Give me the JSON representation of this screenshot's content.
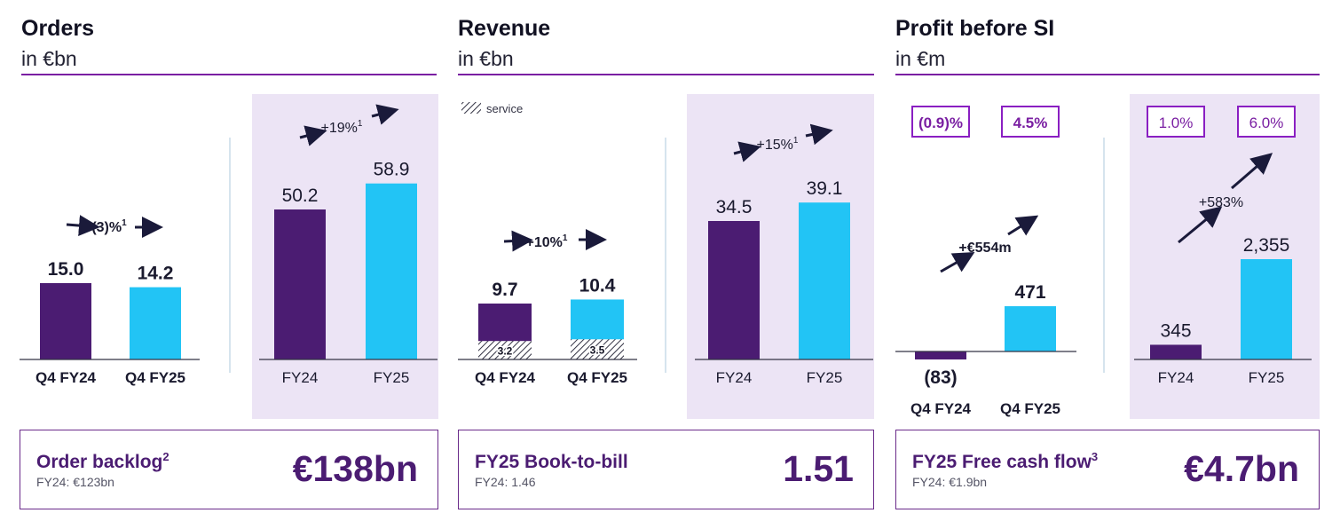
{
  "colors": {
    "purple": "#4b1c72",
    "cyan": "#22c4f5",
    "panel": "#ece4f5",
    "accent": "#7a1fa2",
    "arrow": "#1a1a3a"
  },
  "sections": {
    "orders": {
      "title": "Orders",
      "unit": "in €bn"
    },
    "revenue": {
      "title": "Revenue",
      "unit": "in €bn",
      "legend": "service"
    },
    "profit": {
      "title": "Profit before SI",
      "unit": "in €m"
    }
  },
  "chart_data": [
    {
      "id": "orders-quarter",
      "type": "bar",
      "categories": [
        "Q4 FY24",
        "Q4 FY25"
      ],
      "values": [
        15.0,
        14.2
      ],
      "labels": [
        "15.0",
        "14.2"
      ],
      "change_label": "(3)%",
      "change_sup": "1",
      "ylim": [
        0,
        70
      ]
    },
    {
      "id": "orders-year",
      "type": "bar",
      "categories": [
        "FY24",
        "FY25"
      ],
      "values": [
        50.2,
        58.9
      ],
      "labels": [
        "50.2",
        "58.9"
      ],
      "change_label": "+19%",
      "change_sup": "1",
      "ylim": [
        0,
        70
      ]
    },
    {
      "id": "revenue-quarter",
      "type": "bar",
      "categories": [
        "Q4 FY24",
        "Q4 FY25"
      ],
      "values": [
        9.7,
        10.4
      ],
      "labels": [
        "9.7",
        "10.4"
      ],
      "service_values": [
        3.2,
        3.5
      ],
      "service_labels": [
        "3.2",
        "3.5"
      ],
      "change_label": "+10%",
      "change_sup": "1",
      "ylim": [
        0,
        46
      ]
    },
    {
      "id": "revenue-year",
      "type": "bar",
      "categories": [
        "FY24",
        "FY25"
      ],
      "values": [
        34.5,
        39.1
      ],
      "labels": [
        "34.5",
        "39.1"
      ],
      "change_label": "+15%",
      "change_sup": "1",
      "ylim": [
        0,
        46
      ]
    },
    {
      "id": "profit-quarter",
      "type": "bar",
      "categories": [
        "Q4 FY24",
        "Q4 FY25"
      ],
      "values": [
        -83,
        471
      ],
      "labels": [
        "(83)",
        "471"
      ],
      "margins": [
        "(0.9)%",
        "4.5%"
      ],
      "change_label": "+€554m",
      "ylim": [
        -100,
        1100
      ]
    },
    {
      "id": "profit-year",
      "type": "bar",
      "categories": [
        "FY24",
        "FY25"
      ],
      "values": [
        345,
        2355
      ],
      "labels": [
        "345",
        "2,355"
      ],
      "margins": [
        "1.0%",
        "6.0%"
      ],
      "change_label": "+583%",
      "ylim": [
        0,
        2800
      ]
    }
  ],
  "kpis": [
    {
      "label": "Order backlog",
      "sup": "2",
      "sub": "FY24: €123bn",
      "value": "€138bn"
    },
    {
      "label": "FY25 Book-to-bill",
      "sup": "",
      "sub": "FY24: 1.46",
      "value": "1.51"
    },
    {
      "label": "FY25 Free cash flow",
      "sup": "3",
      "sub": "FY24: €1.9bn",
      "value": "€4.7bn"
    }
  ]
}
